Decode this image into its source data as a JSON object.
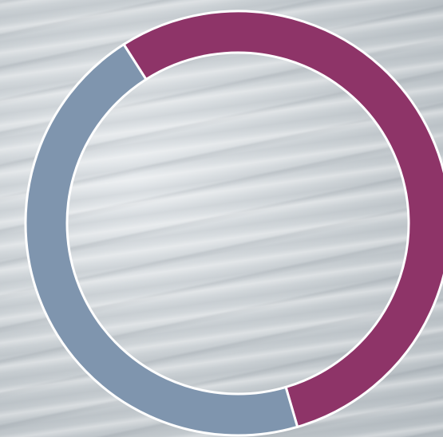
{
  "chart_data": {
    "type": "donut",
    "values": [
      54.5,
      45.5
    ],
    "colors": [
      "#8e3468",
      "#7f95ae"
    ]
  }
}
